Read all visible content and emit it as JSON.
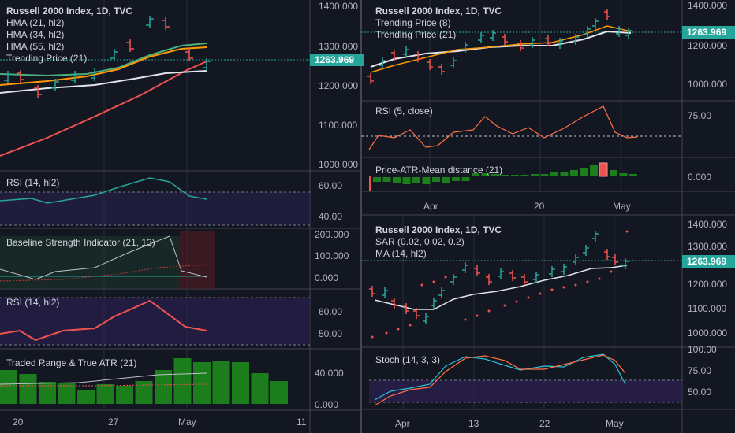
{
  "colors": {
    "background": "#131722",
    "up": "#26a69a",
    "down": "#ef5350",
    "grid": "#2a2e39",
    "rsi_band": "#2a1f4e",
    "volume": "#1b7d1b",
    "price_tag": "#26a69a"
  },
  "left": {
    "main": {
      "title": "Russell 2000 Index, 1D, TVC",
      "indicators": [
        "HMA (21, hl2)",
        "HMA (34, hl2)",
        "HMA (55, hl2)",
        "Trending Price (21)"
      ],
      "price_ticks": [
        "1400.000",
        "1300.000",
        "1263.969",
        "1200.000",
        "1100.000",
        "1000.000"
      ]
    },
    "rsi1": {
      "label": "RSI (14, hl2)",
      "ticks": [
        "60.00",
        "40.00"
      ]
    },
    "baseline": {
      "label": "Baseline Strength Indicator (21, 13)",
      "ticks": [
        "200.000",
        "100.000",
        "0.000"
      ]
    },
    "rsi2": {
      "label": "RSI (14, hl2)",
      "ticks": [
        "60.00",
        "50.00"
      ]
    },
    "atr": {
      "label": "Traded Range & True ATR (21)",
      "ticks": [
        "40.000",
        "0.000"
      ]
    },
    "dates": [
      "20",
      "27",
      "May",
      "11"
    ]
  },
  "top_right": {
    "main": {
      "title": "Russell 2000 Index, 1D, TVC",
      "indicators": [
        "Trending Price (8)",
        "Trending Price (21)"
      ],
      "price_ticks": [
        "1400.000",
        "1263.969",
        "1200.000",
        "1000.000"
      ]
    },
    "rsi": {
      "label": "RSI (5, close)",
      "ticks": [
        "75.00"
      ]
    },
    "atr_mean": {
      "label": "Price-ATR-Mean distance (21)",
      "ticks": [
        "0.000"
      ]
    },
    "dates": [
      "Apr",
      "20",
      "May"
    ]
  },
  "bottom_right": {
    "main": {
      "title": "Russell 2000 Index, 1D, TVC",
      "indicators": [
        "SAR (0.02, 0.02, 0.2)",
        "MA (14, hl2)"
      ],
      "price_ticks": [
        "1400.000",
        "1300.000",
        "1263.969",
        "1200.000",
        "1100.000",
        "1000.000"
      ]
    },
    "stoch": {
      "label": "Stoch (14, 3, 3)",
      "ticks": [
        "100.00",
        "75.00",
        "50.00"
      ]
    },
    "dates": [
      "Apr",
      "13",
      "22",
      "May"
    ]
  },
  "last_price": "1263.969"
}
